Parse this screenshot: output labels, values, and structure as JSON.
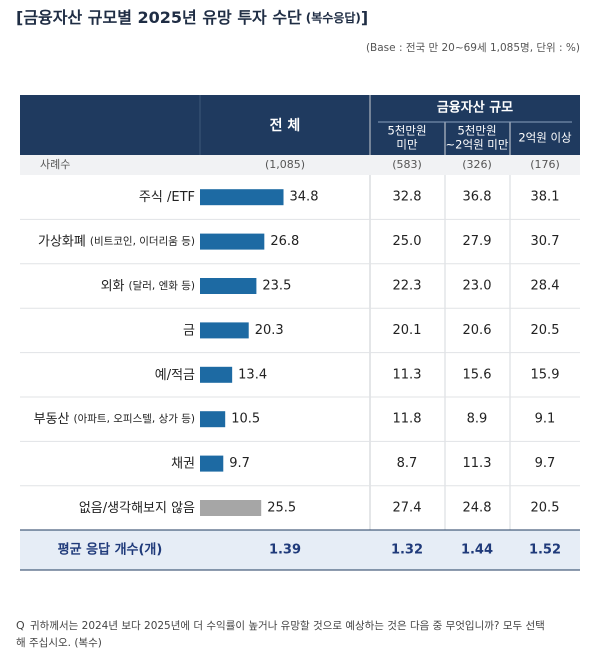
{
  "title": "[금융자산 규모별 2025년 유망 투자 수단",
  "title_note": "(복수응답)",
  "title_end": "]",
  "base_note": "(Base : 전국 만 20~69세 1,085명, 단위 : %)",
  "table": {
    "header_total": "전 체",
    "header_group": "금융자산 규모",
    "columns": [
      [
        "5천만원",
        "미만"
      ],
      [
        "5천만원",
        "~2억원 미만"
      ],
      [
        "2억원 이상"
      ]
    ],
    "sample_label": "사례수",
    "sample": [
      "(1,085)",
      "(583)",
      "(326)",
      "(176)"
    ],
    "rows": [
      {
        "label": "주식 /ETF",
        "total": 34.8,
        "color": "#1d6aa3",
        "values": [
          32.8,
          36.8,
          38.1
        ]
      },
      {
        "label": "가상화폐",
        "sublabel": "(비트코인, 이더리움 등)",
        "total": 26.8,
        "color": "#1d6aa3",
        "values": [
          25,
          27.9,
          30.7
        ],
        "value_labels": [
          "25.0",
          "27.9",
          "30.7"
        ]
      },
      {
        "label": "외화",
        "sublabel": "(달러, 엔화 등)",
        "total": 23.5,
        "color": "#1d6aa3",
        "values": [
          22.3,
          23,
          28.4
        ],
        "value_labels": [
          "22.3",
          "23.0",
          "28.4"
        ]
      },
      {
        "label": "금",
        "total": 20.3,
        "color": "#1d6aa3",
        "values": [
          20.1,
          20.6,
          20.5
        ]
      },
      {
        "label": "예/적금",
        "total": 13.4,
        "color": "#1d6aa3",
        "values": [
          11.3,
          15.6,
          15.9
        ]
      },
      {
        "label": "부동산",
        "sublabel": "(아파트, 오피스텔, 상가 등)",
        "total": 10.5,
        "color": "#1d6aa3",
        "values": [
          11.8,
          8.9,
          9.1
        ]
      },
      {
        "label": "채권",
        "total": 9.7,
        "color": "#1d6aa3",
        "values": [
          8.7,
          11.3,
          9.7
        ]
      },
      {
        "label": "없음/생각해보지 않음",
        "total": 25.5,
        "color": "#a6a6a6",
        "values": [
          27.4,
          24.8,
          20.5
        ]
      }
    ],
    "avg_label": "평균 응답 개수(개)",
    "avg_total": 1.39,
    "avg": [
      1.32,
      1.44,
      1.52
    ]
  },
  "q_mark": "Q",
  "question_lines": [
    "귀하께서는 2024년 보다 2025년에 더 수익률이 높거나 유망할 것으로 예상하는 것은 다음 중 무엇입니까? 모두 선택",
    "해 주십시오. (복수)"
  ]
}
